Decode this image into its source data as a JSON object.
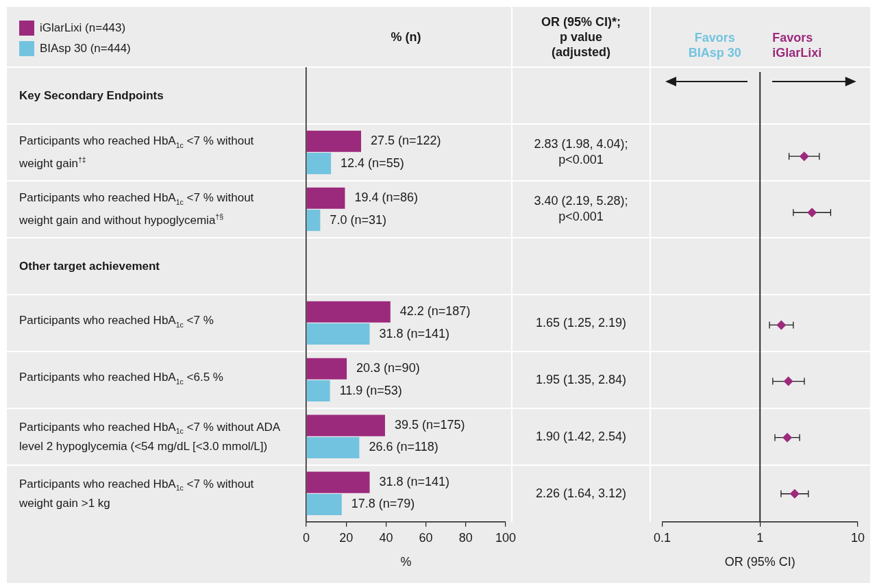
{
  "chart_data": [
    {
      "type": "bar",
      "orientation": "horizontal",
      "title": "% (n)",
      "categories": [
        "Key Secondary Endpoints",
        "Participants who reached HbA$_{1c}$ <7 % without weight gain$^{†‡}$",
        "Participants who reached HbA$_{1c}$ <7 % without weight gain and without hypoglycemia$^{†§}$",
        "Other target achievement",
        "Participants who reached HbA$_{1c}$ <7 %",
        "Participants who reached HbA$_{1c}$ <6.5 %",
        "Participants who reached HbA$_{1c}$ <7 % without ADA level 2 hypoglycemia (<54 mg/dL [<3.0 mmol/L])",
        "Participants who reached HbA$_{1c}$ <7 % without weight gain >1 kg"
      ],
      "series": [
        {
          "name": "iGlarLixi (n=443)",
          "color": "#9c2a7c",
          "values": [
            null,
            27.5,
            19.4,
            null,
            42.2,
            20.3,
            39.5,
            31.8
          ],
          "value_labels": [
            null,
            "27.5 (n=122)",
            "19.4 (n=86)",
            null,
            "42.2 (n=187)",
            "20.3 (n=90)",
            "39.5 (n=175)",
            "31.8 (n=141)"
          ]
        },
        {
          "name": "BIAsp 30 (n=444)",
          "color": "#72c3e0",
          "values": [
            null,
            12.4,
            7.0,
            null,
            31.8,
            11.9,
            26.6,
            17.8
          ],
          "value_labels": [
            null,
            "12.4 (n=55)",
            "7.0 (n=31)",
            null,
            "31.8 (n=141)",
            "11.9 (n=53)",
            "26.6 (n=118)",
            "17.8 (n=79)"
          ]
        }
      ],
      "xlim": [
        0,
        100
      ],
      "xticks": [
        0,
        20,
        40,
        60,
        80,
        100
      ],
      "xlabel": "%",
      "legend": "top left"
    },
    {
      "type": "other",
      "title": "OR (95% CI)*; p value (adjusted)",
      "annotations": [
        "2.83 (1.98, 4.04); p<0.001",
        "3.40 (2.19, 5.28); p<0.001",
        "1.65 (1.25, 2.19)",
        "1.95 (1.35, 2.84)",
        "1.90 (1.42, 2.54)",
        "2.26 (1.64, 3.12)"
      ]
    },
    {
      "type": "scatter",
      "orientation": "horizontal",
      "categories": [
        null,
        null,
        null,
        null,
        null,
        null,
        null,
        null
      ],
      "series": [
        {
          "color": "#9c2a7c",
          "values": [
            null,
            2.83,
            3.4,
            null,
            1.65,
            1.95,
            1.9,
            2.26
          ],
          "errors": [
            null,
            [
              1.98,
              4.04
            ],
            [
              2.19,
              5.28
            ],
            null,
            [
              1.25,
              2.19
            ],
            [
              1.35,
              2.84
            ],
            [
              1.42,
              2.54
            ],
            [
              1.64,
              3.12
            ]
          ]
        }
      ],
      "log": "x",
      "xlim": [
        0.1,
        10
      ],
      "xticks": [
        0.1,
        1,
        10
      ],
      "xlabel": "OR (95% CI)",
      "ref_lines": [
        {
          "axis": "x",
          "value": 1
        }
      ],
      "annotations": [
        "Favors BIAsp 30",
        "Favors iGlarLixi"
      ],
      "marker": "diamond",
      "tick_labels": "x"
    }
  ]
}
